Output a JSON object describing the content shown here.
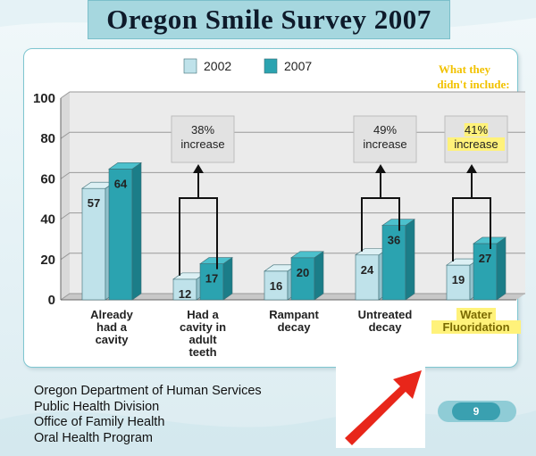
{
  "slide_title": "Oregon Smile Survey 2007",
  "annotation": {
    "line1": "What they",
    "line2": "didn't include:"
  },
  "org_lines": [
    "Oregon Department of Human Services",
    "Public Health Division",
    "Office of Family Health",
    "Oral Health Program"
  ],
  "page_number": "9",
  "colors": {
    "series_2002": "#bfe2ea",
    "series_2007": "#2ba3b0",
    "title_bg": "#a6d7df",
    "annotation": "#f2c200",
    "highlight": "#fff27a",
    "arrow": "#e8261a"
  },
  "chart_data": {
    "type": "bar",
    "categories": [
      [
        "Already",
        "had a",
        "cavity"
      ],
      [
        "Had a",
        "cavity in",
        "adult",
        "teeth"
      ],
      [
        "Rampant",
        "decay"
      ],
      [
        "Untreated",
        "decay"
      ],
      [
        "Water",
        "Fluoridation"
      ]
    ],
    "series": [
      {
        "name": "2002",
        "values": [
          57,
          12,
          16,
          24,
          19
        ]
      },
      {
        "name": "2007",
        "values": [
          64,
          17,
          20,
          36,
          27
        ]
      }
    ],
    "ylim": [
      0,
      100
    ],
    "yticks": [
      0,
      20,
      40,
      60,
      80,
      100
    ],
    "legend_position": "top",
    "grid": true,
    "callouts": [
      {
        "category_index": 1,
        "lines": [
          "38%",
          "increase"
        ],
        "highlight": false
      },
      {
        "category_index": 3,
        "lines": [
          "49%",
          "increase"
        ],
        "highlight": false
      },
      {
        "category_index": 4,
        "lines": [
          "41%",
          "increase"
        ],
        "highlight": true
      }
    ],
    "highlighted_category_index": 4
  }
}
